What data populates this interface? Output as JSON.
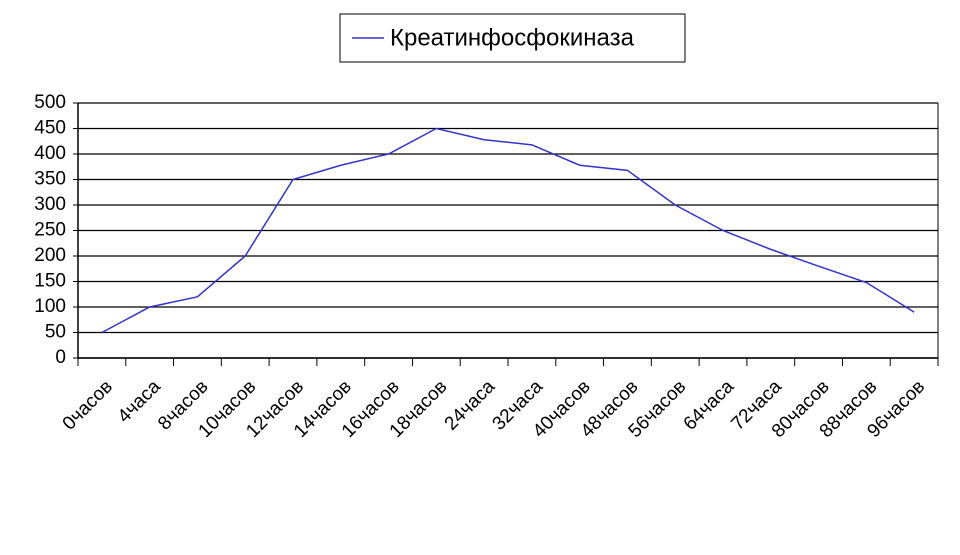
{
  "chart_data": {
    "type": "line",
    "categories": [
      "0часов",
      "4часа",
      "8часов",
      "10часов",
      "12часов",
      "14часов",
      "16часов",
      "18часов",
      "24часа",
      "32часа",
      "40часов",
      "48часов",
      "56часов",
      "64часа",
      "72часа",
      "80часов",
      "88часов",
      "96часов"
    ],
    "series": [
      {
        "name": "Креатинфосфокиназа",
        "color": "#3333cc",
        "values": [
          50,
          100,
          120,
          200,
          350,
          378,
          400,
          450,
          428,
          418,
          378,
          368,
          300,
          250,
          213,
          180,
          148,
          90
        ]
      }
    ],
    "ylim": [
      0,
      500
    ],
    "yticks": [
      0,
      50,
      100,
      150,
      200,
      250,
      300,
      350,
      400,
      450,
      500
    ],
    "grid": true,
    "legend": "top"
  }
}
